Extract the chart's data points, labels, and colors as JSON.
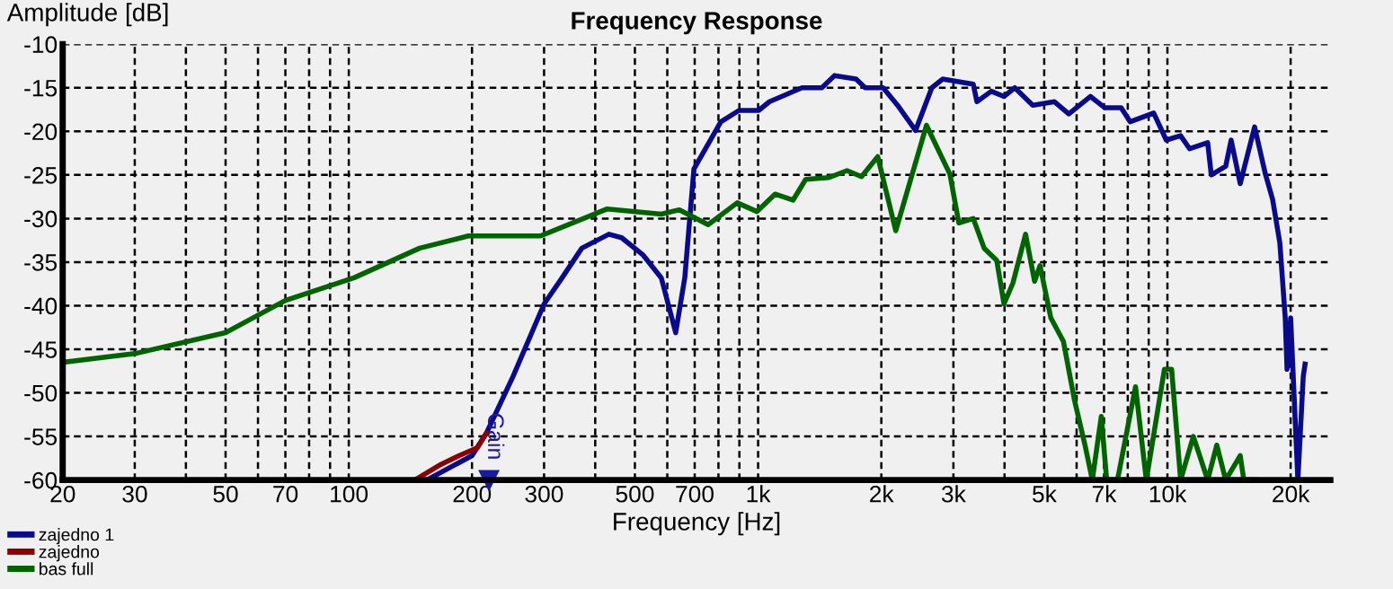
{
  "chart_data": {
    "type": "line",
    "title": "Frequency Response",
    "xlabel": "Frequency [Hz]",
    "ylabel": "Amplitude [dB]",
    "log": "x",
    "grid": true,
    "legend": "bottom left",
    "line_style": "solid",
    "marker": "none",
    "xlim": [
      20,
      25000
    ],
    "ylim": [
      -60,
      -10
    ],
    "xticks": [
      20,
      30,
      {
        "value": 40,
        "label": null
      },
      50,
      {
        "value": 60,
        "label": null
      },
      70,
      {
        "value": 80,
        "label": null
      },
      {
        "value": 90,
        "label": null
      },
      100,
      200,
      300,
      {
        "value": 400,
        "label": null
      },
      500,
      {
        "value": 600,
        "label": null
      },
      700,
      {
        "value": 800,
        "label": null
      },
      {
        "value": 900,
        "label": null
      },
      {
        "value": 1000,
        "label": "1k"
      },
      {
        "value": 2000,
        "label": "2k"
      },
      {
        "value": 3000,
        "label": "3k"
      },
      {
        "value": 4000,
        "label": null
      },
      {
        "value": 5000,
        "label": "5k"
      },
      {
        "value": 6000,
        "label": null
      },
      {
        "value": 7000,
        "label": "7k"
      },
      {
        "value": 8000,
        "label": null
      },
      {
        "value": 9000,
        "label": null
      },
      {
        "value": 10000,
        "label": "10k"
      },
      {
        "value": 20000,
        "label": "20k"
      }
    ],
    "yticks": [
      -60,
      -55,
      -50,
      -45,
      -40,
      -35,
      -30,
      -25,
      -20,
      -15,
      -10
    ],
    "annotations": [
      {
        "text": "Gain",
        "x": 220,
        "y": -60
      }
    ],
    "series": [
      {
        "name": "zajedno 1",
        "color": "#0a0a8c",
        "x": [
          155,
          200,
          217,
          252,
          300,
          332,
          371,
          432,
          464,
          524,
          580,
          629,
          662,
          697,
          811,
          898,
          1003,
          1066,
          1280,
          1431,
          1537,
          1735,
          1826,
          2020,
          2191,
          2425,
          2657,
          2823,
          3355,
          3424,
          3713,
          3988,
          4237,
          4688,
          5297,
          5742,
          6487,
          7036,
          7707,
          8107,
          9255,
          9934,
          10770,
          11330,
          12540,
          12800,
          13880,
          14310,
          15060,
          16330,
          17350,
          18070,
          18820,
          19400,
          19600,
          20000,
          20410,
          20830,
          21470,
          21690
        ],
        "values": [
          -60,
          -57.2,
          -54.6,
          -48.1,
          -39.8,
          -36.8,
          -33.4,
          -31.8,
          -32.2,
          -34.2,
          -36.8,
          -43.1,
          -36.8,
          -24.3,
          -18.9,
          -17.6,
          -17.6,
          -16.6,
          -15,
          -15,
          -13.6,
          -14,
          -15,
          -15,
          -17,
          -19.9,
          -15,
          -14,
          -14.6,
          -16.6,
          -15.4,
          -16,
          -15,
          -17,
          -16.6,
          -18,
          -16,
          -17.3,
          -17.3,
          -18.9,
          -17.9,
          -21,
          -20.5,
          -22,
          -21.3,
          -25,
          -24,
          -21,
          -26,
          -19.5,
          -24.9,
          -27.8,
          -32.8,
          -41.4,
          -47.3,
          -41.4,
          -50.7,
          -60,
          -48.1,
          -46.7
        ]
      },
      {
        "name": "zajedno",
        "color": "#8b0000",
        "x": [
          145,
          168,
          186,
          206,
          217
        ],
        "values": [
          -60,
          -58.2,
          -57.2,
          -56.3,
          -54.6
        ]
      },
      {
        "name": "bas full",
        "color": "#006400",
        "x": [
          20,
          30,
          50,
          70,
          103,
          149,
          196,
          294,
          428,
          580,
          642,
          755,
          889,
          994,
          1100,
          1217,
          1307,
          1490,
          1649,
          1789,
          1960,
          2169,
          2578,
          2941,
          3093,
          3355,
          3566,
          3828,
          3988,
          4193,
          4502,
          4736,
          4884,
          5189,
          5571,
          5919,
          6290,
          6554,
          6893,
          7106,
          7551,
          8357,
          8880,
          9831,
          10240,
          10770,
          11570,
          12540,
          13200,
          13880,
          15060,
          15370,
          16500
        ],
        "values": [
          -46.5,
          -45.5,
          -43.1,
          -39.4,
          -36.8,
          -33.4,
          -32,
          -32,
          -28.9,
          -29.5,
          -29,
          -30.7,
          -28.2,
          -29.2,
          -27.2,
          -27.9,
          -25.5,
          -25.3,
          -24.5,
          -25.2,
          -22.9,
          -31.4,
          -19.3,
          -24.9,
          -30.5,
          -30,
          -33.4,
          -34.8,
          -39.8,
          -37.4,
          -31.8,
          -37.2,
          -35.4,
          -41.4,
          -44.1,
          -50.7,
          -56,
          -60,
          -52.7,
          -60,
          -60,
          -49.3,
          -60,
          -47.3,
          -47.3,
          -60,
          -55,
          -60,
          -56,
          -60,
          -57.2,
          -60,
          -60
        ]
      }
    ]
  }
}
